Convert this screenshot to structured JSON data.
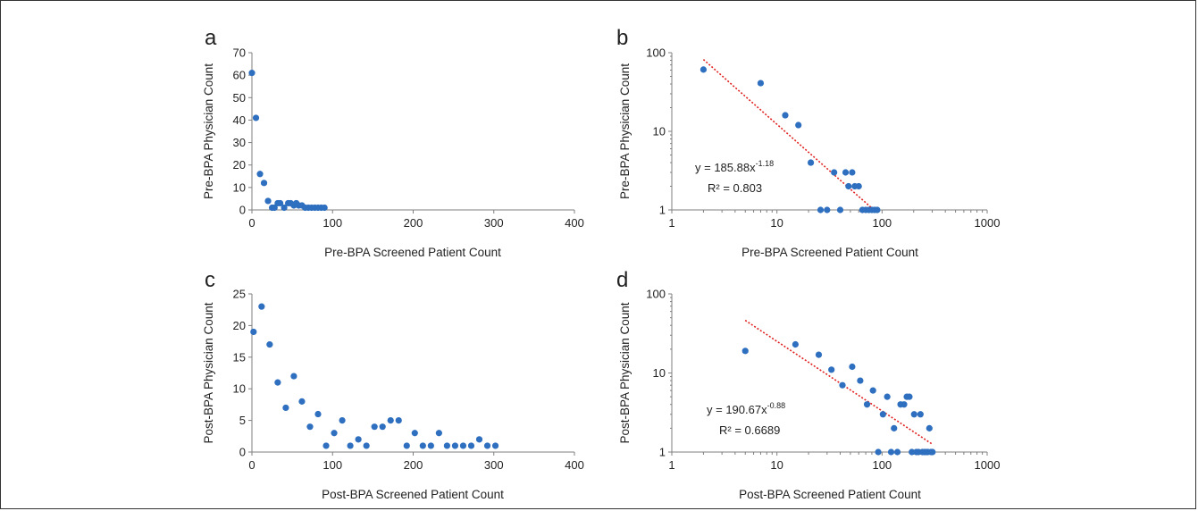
{
  "chart_data": [
    {
      "panel": "a",
      "type": "scatter",
      "xscale": "linear",
      "yscale": "linear",
      "xlim": [
        0,
        400
      ],
      "ylim": [
        0,
        70
      ],
      "xticks": [
        0,
        100,
        200,
        300,
        400
      ],
      "yticks": [
        0,
        10,
        20,
        30,
        40,
        50,
        60,
        70
      ],
      "xlabel": "Pre-BPA Screened Patient Count",
      "ylabel": "Pre-BPA Physician Count",
      "points": [
        [
          0,
          61
        ],
        [
          5,
          41
        ],
        [
          10,
          16
        ],
        [
          15,
          12
        ],
        [
          20,
          4
        ],
        [
          25,
          1
        ],
        [
          28,
          1
        ],
        [
          32,
          3
        ],
        [
          35,
          3
        ],
        [
          40,
          1
        ],
        [
          45,
          3
        ],
        [
          48,
          3
        ],
        [
          52,
          2
        ],
        [
          55,
          3
        ],
        [
          58,
          2
        ],
        [
          62,
          2
        ],
        [
          66,
          1
        ],
        [
          70,
          1
        ],
        [
          74,
          1
        ],
        [
          78,
          1
        ],
        [
          82,
          1
        ],
        [
          86,
          1
        ],
        [
          90,
          1
        ]
      ]
    },
    {
      "panel": "b",
      "type": "scatter",
      "xscale": "log",
      "yscale": "log",
      "xlim": [
        1,
        1000
      ],
      "ylim": [
        1,
        100
      ],
      "xticks": [
        1,
        10,
        100,
        1000
      ],
      "yticks": [
        1,
        10,
        100
      ],
      "xlabel": "Pre-BPA Screened Patient Count",
      "ylabel": "Pre-BPA Physician Count",
      "points": [
        [
          2,
          61
        ],
        [
          7,
          41
        ],
        [
          12,
          16
        ],
        [
          16,
          12
        ],
        [
          21,
          4
        ],
        [
          26,
          1
        ],
        [
          30,
          1
        ],
        [
          35,
          3
        ],
        [
          40,
          1
        ],
        [
          45,
          3
        ],
        [
          48,
          2
        ],
        [
          52,
          3
        ],
        [
          55,
          2
        ],
        [
          60,
          2
        ],
        [
          65,
          1
        ],
        [
          70,
          1
        ],
        [
          75,
          1
        ],
        [
          80,
          1
        ],
        [
          85,
          1
        ],
        [
          90,
          1
        ]
      ],
      "trendline": {
        "type": "power",
        "a": 185.88,
        "b": -1.18,
        "x_from": 2,
        "x_to": 84
      },
      "equation": {
        "prefix": "y = 185.88x",
        "exponent": "-1.18",
        "r2": "R² = 0.803"
      }
    },
    {
      "panel": "c",
      "type": "scatter",
      "xscale": "linear",
      "yscale": "linear",
      "xlim": [
        0,
        400
      ],
      "ylim": [
        0,
        25
      ],
      "xticks": [
        0,
        100,
        200,
        300,
        400
      ],
      "yticks": [
        0,
        5,
        10,
        15,
        20,
        25
      ],
      "xlabel": "Post-BPA Screened Patient Count",
      "ylabel": "Post-BPA Physician Count",
      "points": [
        [
          2,
          19
        ],
        [
          12,
          23
        ],
        [
          22,
          17
        ],
        [
          32,
          11
        ],
        [
          42,
          7
        ],
        [
          52,
          12
        ],
        [
          62,
          8
        ],
        [
          72,
          4
        ],
        [
          82,
          6
        ],
        [
          92,
          1
        ],
        [
          102,
          3
        ],
        [
          112,
          5
        ],
        [
          122,
          1
        ],
        [
          132,
          2
        ],
        [
          142,
          1
        ],
        [
          152,
          4
        ],
        [
          162,
          4
        ],
        [
          172,
          5
        ],
        [
          182,
          5
        ],
        [
          192,
          1
        ],
        [
          202,
          3
        ],
        [
          212,
          1
        ],
        [
          222,
          1
        ],
        [
          232,
          3
        ],
        [
          242,
          1
        ],
        [
          252,
          1
        ],
        [
          262,
          1
        ],
        [
          272,
          1
        ],
        [
          282,
          2
        ],
        [
          292,
          1
        ],
        [
          302,
          1
        ]
      ]
    },
    {
      "panel": "d",
      "type": "scatter",
      "xscale": "log",
      "yscale": "log",
      "xlim": [
        1,
        1000
      ],
      "ylim": [
        1,
        100
      ],
      "xticks": [
        1,
        10,
        100,
        1000
      ],
      "yticks": [
        1,
        10,
        100
      ],
      "xlabel": "Post-BPA Screened Patient Count",
      "ylabel": "Post-BPA Physician Count",
      "points": [
        [
          5,
          19
        ],
        [
          15,
          23
        ],
        [
          25,
          17
        ],
        [
          33,
          11
        ],
        [
          42,
          7
        ],
        [
          52,
          12
        ],
        [
          62,
          8
        ],
        [
          72,
          4
        ],
        [
          82,
          6
        ],
        [
          92,
          1
        ],
        [
          102,
          3
        ],
        [
          112,
          5
        ],
        [
          122,
          1
        ],
        [
          130,
          2
        ],
        [
          140,
          1
        ],
        [
          150,
          4
        ],
        [
          162,
          4
        ],
        [
          172,
          5
        ],
        [
          182,
          5
        ],
        [
          192,
          1
        ],
        [
          202,
          3
        ],
        [
          212,
          1
        ],
        [
          222,
          1
        ],
        [
          232,
          3
        ],
        [
          242,
          1
        ],
        [
          252,
          1
        ],
        [
          262,
          1
        ],
        [
          272,
          1
        ],
        [
          282,
          2
        ],
        [
          292,
          1
        ],
        [
          302,
          1
        ]
      ],
      "trendline": {
        "type": "power",
        "a": 190.67,
        "b": -0.88,
        "x_from": 5,
        "x_to": 300
      },
      "equation": {
        "prefix": "y = 190.67x",
        "exponent": "-0.88",
        "r2": "R² = 0.6689"
      }
    }
  ]
}
